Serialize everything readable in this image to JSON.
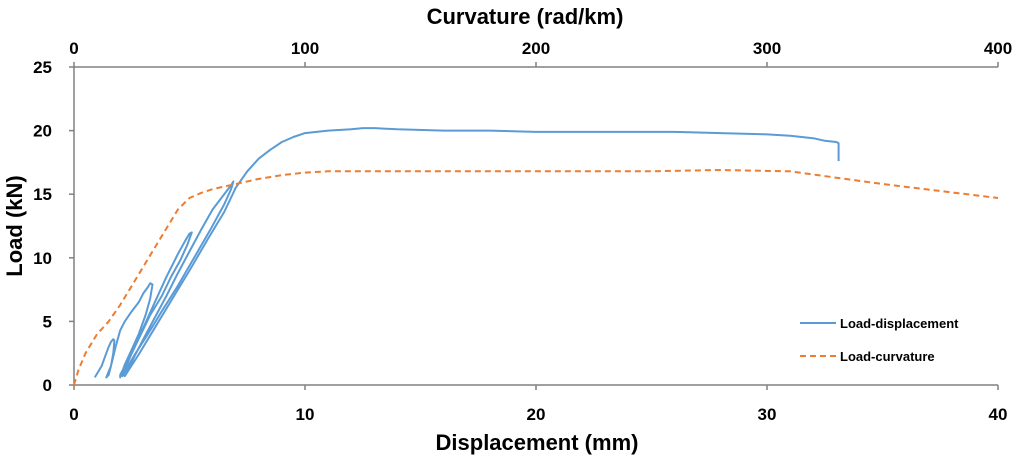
{
  "chart_data": {
    "type": "line",
    "title": "",
    "xlabel": "Displacement (mm)",
    "x2label": "Curvature (rad/km)",
    "ylabel": "Load (kN)",
    "xlim": [
      0,
      40
    ],
    "x2lim": [
      0,
      400
    ],
    "ylim": [
      0,
      25
    ],
    "x_ticks": [
      "0",
      "10",
      "20",
      "30",
      "40"
    ],
    "x2_ticks": [
      "0",
      "100",
      "200",
      "300",
      "400"
    ],
    "y_ticks": [
      "0",
      "5",
      "10",
      "15",
      "20",
      "25"
    ],
    "grid": false,
    "legend_position": "lower-right",
    "series": [
      {
        "name": "Load-displacement",
        "axis": "x",
        "color": "#5b9bd5",
        "style": "solid",
        "x": [
          0.9,
          1.2,
          1.4,
          1.5,
          1.6,
          1.7,
          1.75,
          1.7,
          1.6,
          1.5,
          1.4,
          1.6,
          1.8,
          2.0,
          2.2,
          2.5,
          2.8,
          3.0,
          3.2,
          3.3,
          3.4,
          3.3,
          3.1,
          2.8,
          2.5,
          2.2,
          2.0,
          2.0,
          2.5,
          3.0,
          3.5,
          4.0,
          4.5,
          4.8,
          5.0,
          5.1,
          4.9,
          4.6,
          4.2,
          3.8,
          3.3,
          2.9,
          2.5,
          2.2,
          2.1,
          2.6,
          3.2,
          3.8,
          4.5,
          5.2,
          5.9,
          6.5,
          6.8,
          6.9,
          6.8,
          6.5,
          6.0,
          5.5,
          5.0,
          4.5,
          4.0,
          3.5,
          3.0,
          2.6,
          2.3,
          2.2,
          2.8,
          3.5,
          4.2,
          5.0,
          5.8,
          6.5,
          7.0,
          7.5,
          8.0,
          8.5,
          9.0,
          9.5,
          10.0,
          11.0,
          12.0,
          12.5,
          13.0,
          14.0,
          16.0,
          18.0,
          20.0,
          22.0,
          24.0,
          26.0,
          28.0,
          30.0,
          31.0,
          32.0,
          32.5,
          33.0,
          33.1,
          33.1
        ],
        "y": [
          0.6,
          1.5,
          2.5,
          3.0,
          3.4,
          3.6,
          3.5,
          2.5,
          1.5,
          0.8,
          0.6,
          1.5,
          3.0,
          4.3,
          5.0,
          5.8,
          6.5,
          7.2,
          7.7,
          8.0,
          7.9,
          6.8,
          5.5,
          4.0,
          2.8,
          1.6,
          0.6,
          0.8,
          2.5,
          4.5,
          6.5,
          8.5,
          10.3,
          11.3,
          11.9,
          12.0,
          11.0,
          9.8,
          8.5,
          7.0,
          5.5,
          4.0,
          2.5,
          1.2,
          0.7,
          2.3,
          4.0,
          5.8,
          7.8,
          10.0,
          12.2,
          14.2,
          15.4,
          16.0,
          15.7,
          15.0,
          13.8,
          12.2,
          10.5,
          8.8,
          7.0,
          5.3,
          3.6,
          2.2,
          1.0,
          0.7,
          2.4,
          4.5,
          6.6,
          9.0,
          11.5,
          13.6,
          15.5,
          16.8,
          17.8,
          18.5,
          19.1,
          19.5,
          19.8,
          20.0,
          20.1,
          20.2,
          20.2,
          20.1,
          20.0,
          20.0,
          19.9,
          19.9,
          19.9,
          19.9,
          19.8,
          19.7,
          19.6,
          19.4,
          19.2,
          19.1,
          19.0,
          17.6
        ]
      },
      {
        "name": "Load-curvature",
        "axis": "x2",
        "color": "#ed7d31",
        "style": "dashed",
        "x": [
          0,
          2,
          5,
          10,
          15,
          20,
          25,
          30,
          35,
          40,
          45,
          50,
          55,
          60,
          70,
          80,
          90,
          100,
          110,
          150,
          200,
          250,
          280,
          310,
          330,
          350,
          400
        ],
        "y": [
          0,
          1.2,
          2.5,
          4.0,
          5.0,
          6.3,
          7.8,
          9.3,
          10.8,
          12.3,
          13.8,
          14.7,
          15.1,
          15.4,
          15.8,
          16.2,
          16.5,
          16.7,
          16.8,
          16.8,
          16.8,
          16.8,
          16.9,
          16.8,
          16.3,
          15.8,
          14.7
        ]
      }
    ]
  }
}
